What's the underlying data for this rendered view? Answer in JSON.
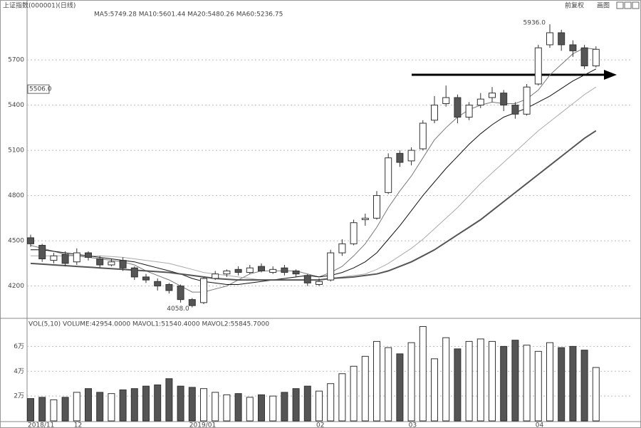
{
  "chart_data": [
    {
      "type": "candlestick",
      "title": "上证指数(000001)(日线)",
      "subtitle": "MA5:5749.28 MA10:5601.44 MA20:5480.26 MA60:5236.75",
      "categories": [
        "2018/11",
        null,
        null,
        null,
        "12",
        null,
        null,
        null,
        null,
        null,
        null,
        null,
        null,
        null,
        "2019/01",
        null,
        null,
        null,
        null,
        null,
        null,
        null,
        null,
        null,
        null,
        "02",
        null,
        null,
        null,
        null,
        null,
        null,
        null,
        "03",
        null,
        null,
        null,
        null,
        null,
        null,
        null,
        null,
        null,
        null,
        "04",
        null,
        null,
        null,
        null,
        null
      ],
      "open": [
        4520,
        4470,
        4370,
        4410,
        4360,
        4420,
        4380,
        4340,
        4370,
        4320,
        4260,
        4230,
        4210,
        4200,
        4110,
        4090,
        4250,
        4280,
        4310,
        4290,
        4330,
        4290,
        4320,
        4300,
        4270,
        4210,
        4240,
        4420,
        4480,
        4640,
        4650,
        4820,
        5080,
        5030,
        5110,
        5300,
        5410,
        5450,
        5320,
        5400,
        5450,
        5480,
        5400,
        5340,
        5540,
        5800,
        5880,
        5800,
        5780,
        5660
      ],
      "high": [
        4540,
        4480,
        4420,
        4430,
        4450,
        4430,
        4400,
        4380,
        4390,
        4330,
        4280,
        4250,
        4220,
        4210,
        4120,
        4260,
        4300,
        4310,
        4330,
        4340,
        4350,
        4330,
        4340,
        4310,
        4280,
        4250,
        4440,
        4510,
        4640,
        4680,
        4830,
        5080,
        5100,
        5120,
        5300,
        5460,
        5530,
        5470,
        5420,
        5480,
        5520,
        5500,
        5420,
        5540,
        5800,
        5936,
        5900,
        5830,
        5800,
        5790
      ],
      "low": [
        4460,
        4360,
        4350,
        4330,
        4340,
        4370,
        4320,
        4330,
        4300,
        4240,
        4220,
        4170,
        4150,
        4090,
        4058,
        4080,
        4240,
        4260,
        4270,
        4280,
        4290,
        4280,
        4270,
        4260,
        4200,
        4200,
        4230,
        4400,
        4470,
        4600,
        4640,
        4810,
        4990,
        5000,
        5100,
        5280,
        5390,
        5280,
        5300,
        5380,
        5420,
        5360,
        5310,
        5330,
        5530,
        5780,
        5760,
        5720,
        5640,
        5650
      ],
      "close": [
        4480,
        4380,
        4400,
        4350,
        4420,
        4390,
        4340,
        4360,
        4320,
        4260,
        4240,
        4200,
        4170,
        4110,
        4070,
        4250,
        4280,
        4300,
        4290,
        4320,
        4300,
        4310,
        4290,
        4280,
        4220,
        4230,
        4420,
        4480,
        4620,
        4650,
        4800,
        5050,
        5020,
        5100,
        5280,
        5400,
        5450,
        5320,
        5400,
        5440,
        5480,
        5400,
        5340,
        5520,
        5780,
        5880,
        5800,
        5760,
        5660,
        5770
      ],
      "up_color": "#ffffff",
      "down_color": "#555555",
      "series": [
        {
          "name": "MA5",
          "color": "#777777",
          "values": [
            4470,
            4450,
            4430,
            4410,
            4400,
            4390,
            4380,
            4370,
            4360,
            4340,
            4300,
            4270,
            4240,
            4200,
            4160,
            4160,
            4180,
            4200,
            4240,
            4280,
            4300,
            4300,
            4300,
            4300,
            4280,
            4260,
            4290,
            4330,
            4400,
            4480,
            4590,
            4720,
            4830,
            4930,
            5050,
            5170,
            5250,
            5320,
            5370,
            5400,
            5420,
            5410,
            5410,
            5440,
            5500,
            5600,
            5670,
            5740,
            5780,
            5770
          ]
        },
        {
          "name": "MA10",
          "color": "#111111",
          "values": [
            4440,
            4440,
            4430,
            4420,
            4410,
            4400,
            4390,
            4380,
            4370,
            4360,
            4340,
            4320,
            4300,
            4280,
            4250,
            4230,
            4220,
            4210,
            4210,
            4220,
            4230,
            4240,
            4250,
            4260,
            4270,
            4260,
            4270,
            4290,
            4320,
            4360,
            4420,
            4510,
            4600,
            4700,
            4800,
            4890,
            4980,
            5060,
            5140,
            5210,
            5270,
            5320,
            5350,
            5380,
            5420,
            5460,
            5510,
            5560,
            5600,
            5640
          ]
        },
        {
          "name": "MA20",
          "color": "#aaaaaa",
          "values": [
            4400,
            4400,
            4400,
            4400,
            4400,
            4400,
            4400,
            4395,
            4390,
            4380,
            4370,
            4360,
            4350,
            4330,
            4310,
            4290,
            4280,
            4270,
            4260,
            4250,
            4240,
            4240,
            4240,
            4240,
            4240,
            4240,
            4250,
            4260,
            4270,
            4280,
            4310,
            4350,
            4400,
            4450,
            4510,
            4580,
            4650,
            4720,
            4800,
            4880,
            4950,
            5020,
            5090,
            5160,
            5230,
            5290,
            5350,
            5410,
            5470,
            5520
          ]
        },
        {
          "name": "MA60",
          "color": "#555555",
          "values": [
            4350,
            4345,
            4340,
            4335,
            4330,
            4325,
            4320,
            4315,
            4310,
            4305,
            4300,
            4295,
            4290,
            4280,
            4270,
            4260,
            4250,
            4245,
            4240,
            4240,
            4240,
            4240,
            4240,
            4240,
            4240,
            4240,
            4250,
            4255,
            4260,
            4270,
            4280,
            4300,
            4330,
            4360,
            4400,
            4440,
            4490,
            4540,
            4590,
            4640,
            4700,
            4760,
            4820,
            4880,
            4940,
            5000,
            5060,
            5120,
            5180,
            5230
          ]
        }
      ],
      "annotations": [
        {
          "label": "5936.0",
          "value": 5936
        },
        {
          "label": "4058.0",
          "value": 4058
        },
        {
          "label": "5506.0",
          "value": 5506
        }
      ],
      "ylim": [
        3995,
        6050
      ],
      "yticks": [
        4200,
        4500,
        4800,
        5100,
        5400,
        5700
      ],
      "grid": true,
      "buttons": [
        "前复权",
        "画图"
      ]
    },
    {
      "type": "bar",
      "title": "VOL(5,10) VOLUME:42954.0000 MAVOL1:51540.4000 MAVOL2:55845.7000",
      "values": [
        1.8,
        1.9,
        1.7,
        1.9,
        2.3,
        2.6,
        2.3,
        2.2,
        2.5,
        2.6,
        2.8,
        2.9,
        3.4,
        2.8,
        2.7,
        2.6,
        2.3,
        2.1,
        2.2,
        1.9,
        2.1,
        2.0,
        2.3,
        2.6,
        2.8,
        2.4,
        3.0,
        3.8,
        4.4,
        5.2,
        6.4,
        5.9,
        5.4,
        6.3,
        7.6,
        5.0,
        6.7,
        5.8,
        6.4,
        6.6,
        6.4,
        6.0,
        6.5,
        6.1,
        5.6,
        6.3,
        5.9,
        6.0,
        5.7,
        4.3
      ],
      "ylim": [
        0,
        7.8
      ],
      "yticks": [
        {
          "value": 2,
          "label": "2万"
        },
        {
          "value": 4,
          "label": "4万"
        },
        {
          "value": 6,
          "label": "6万"
        }
      ],
      "grid": true
    }
  ]
}
